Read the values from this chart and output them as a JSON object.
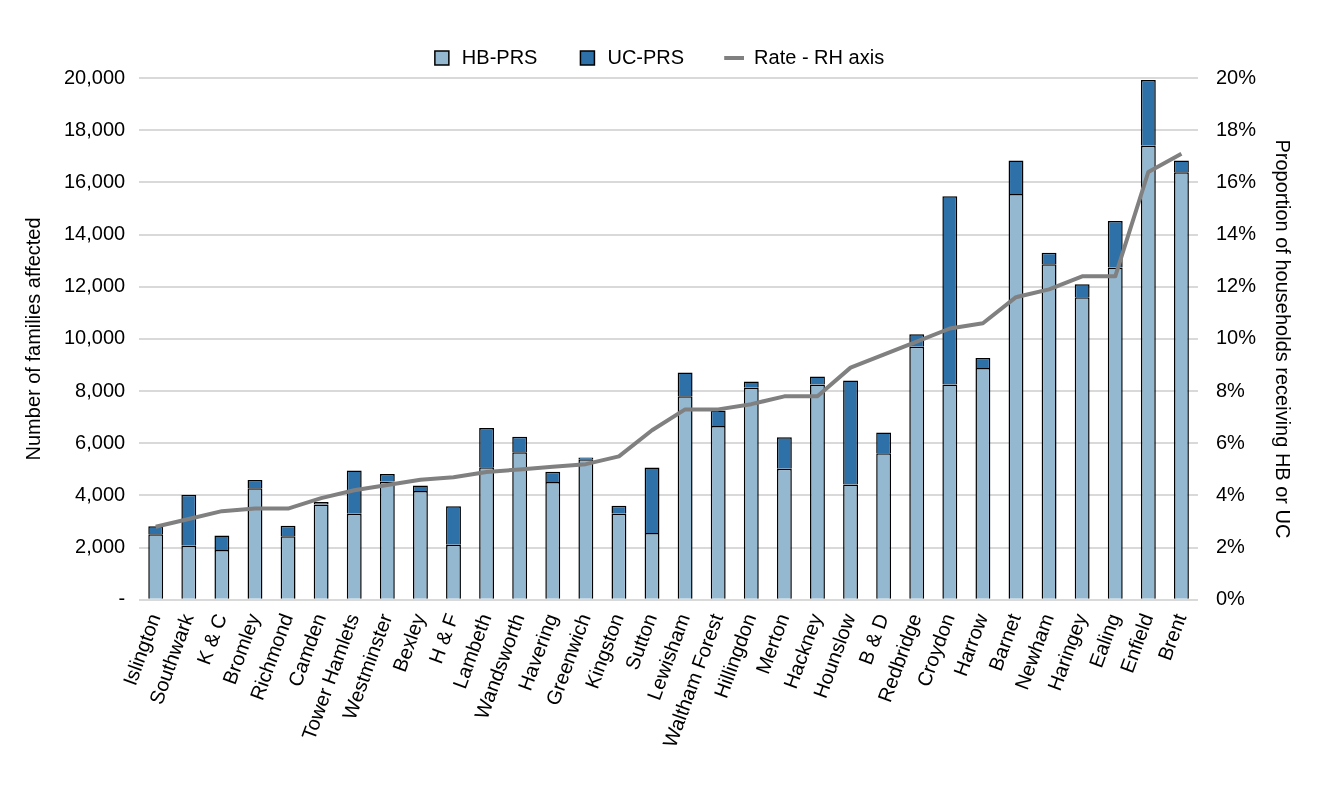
{
  "chart_data": {
    "type": "bar",
    "stacked": true,
    "ylabel": "Number of families affected",
    "y2label": "Proportion of households receiving HB or UC",
    "categories": [
      "Islington",
      "Southwark",
      "K & C",
      "Bromley",
      "Richmond",
      "Camden",
      "Tower Hamlets",
      "Westminster",
      "Bexley",
      "H & F",
      "Lambeth",
      "Wandsworth",
      "Havering",
      "Greenwich",
      "Kingston",
      "Sutton",
      "Lewisham",
      "Waltham Forest",
      "Hillingdon",
      "Merton",
      "Hackney",
      "Hounslow",
      "B & D",
      "Redbridge",
      "Croydon",
      "Harrow",
      "Barnet",
      "Newham",
      "Haringey",
      "Ealing",
      "Enfield",
      "Brent"
    ],
    "series": [
      {
        "name": "HB-PRS",
        "color": "#95b8d1",
        "values": [
          2510,
          2070,
          1910,
          4280,
          2440,
          3650,
          3300,
          4540,
          4170,
          2110,
          5080,
          5660,
          4520,
          5390,
          3300,
          2560,
          7800,
          6660,
          8130,
          5020,
          8250,
          4420,
          5620,
          9700,
          8250,
          8890,
          15550,
          12860,
          11600,
          12740,
          17400,
          16390
        ]
      },
      {
        "name": "UC-PRS",
        "color": "#2e71a8",
        "values": [
          310,
          1960,
          560,
          310,
          400,
          100,
          1660,
          280,
          210,
          1480,
          1510,
          590,
          390,
          70,
          310,
          2510,
          910,
          600,
          240,
          1210,
          310,
          3990,
          790,
          480,
          7220,
          380,
          1290,
          440,
          500,
          1780,
          2520,
          450
        ]
      },
      {
        "name": "Rate - RH axis",
        "type": "line",
        "axis": "y2",
        "color": "#808080",
        "values": [
          2.8,
          3.1,
          3.4,
          3.5,
          3.5,
          3.9,
          4.2,
          4.4,
          4.6,
          4.7,
          4.9,
          5.0,
          5.1,
          5.2,
          5.5,
          6.5,
          7.3,
          7.3,
          7.5,
          7.8,
          7.8,
          8.9,
          9.4,
          9.9,
          10.4,
          10.6,
          11.6,
          11.9,
          12.4,
          12.4,
          16.4,
          17.1
        ]
      }
    ],
    "ylim": [
      0,
      20000
    ],
    "yticks": [
      {
        "value": 0,
        "label": "-"
      },
      {
        "value": 2000,
        "label": "2,000"
      },
      {
        "value": 4000,
        "label": "4,000"
      },
      {
        "value": 6000,
        "label": "6,000"
      },
      {
        "value": 8000,
        "label": "8,000"
      },
      {
        "value": 10000,
        "label": "10,000"
      },
      {
        "value": 12000,
        "label": "12,000"
      },
      {
        "value": 14000,
        "label": "14,000"
      },
      {
        "value": 16000,
        "label": "16,000"
      },
      {
        "value": 18000,
        "label": "18,000"
      },
      {
        "value": 20000,
        "label": "20,000"
      }
    ],
    "y2lim": [
      0,
      20
    ],
    "y2ticks": [
      {
        "value": 0,
        "label": "0%"
      },
      {
        "value": 2,
        "label": "2%"
      },
      {
        "value": 4,
        "label": "4%"
      },
      {
        "value": 6,
        "label": "6%"
      },
      {
        "value": 8,
        "label": "8%"
      },
      {
        "value": 10,
        "label": "10%"
      },
      {
        "value": 12,
        "label": "12%"
      },
      {
        "value": 14,
        "label": "14%"
      },
      {
        "value": 16,
        "label": "16%"
      },
      {
        "value": 18,
        "label": "18%"
      },
      {
        "value": 20,
        "label": "20%"
      }
    ],
    "grid": "y",
    "legend": "top",
    "marker": "none",
    "line_style": "solid"
  }
}
